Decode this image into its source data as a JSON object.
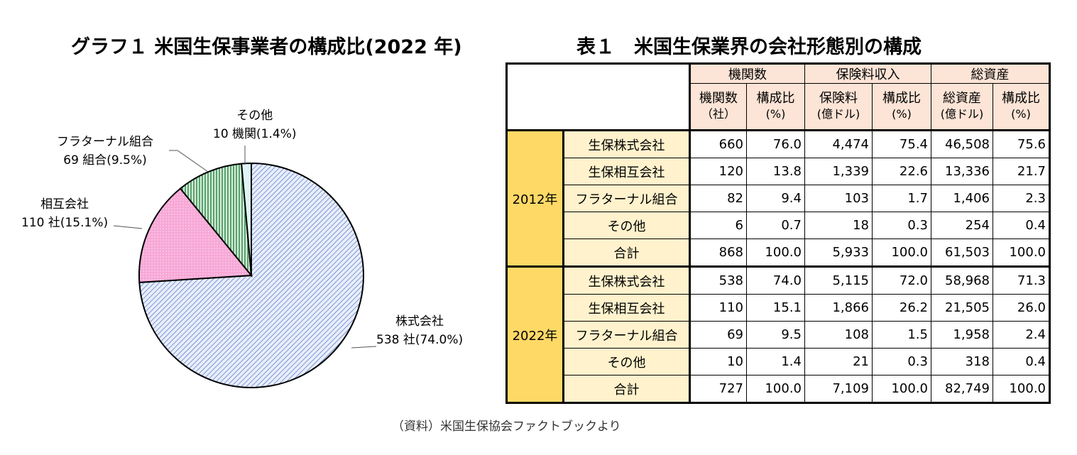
{
  "chart_title": "グラフ１ 米国生保事業者の構成比(2022 年)",
  "table_title": "表１　米国生保業界の会社形態別の構成",
  "chart_data": {
    "type": "pie",
    "title": "グラフ１ 米国生保事業者の構成比(2022 年)",
    "slices": [
      {
        "name": "株式会社",
        "count": 538,
        "unit": "社",
        "percent": 74.0,
        "label1": "株式会社",
        "label2": "538 社(74.0%)",
        "color": "#c5d3f0"
      },
      {
        "name": "相互会社",
        "count": 110,
        "unit": "社",
        "percent": 15.1,
        "label1": "相互会社",
        "label2": "110 社(15.1%)",
        "color": "#f7a8d6"
      },
      {
        "name": "フラターナル組合",
        "count": 69,
        "unit": "組合",
        "percent": 9.5,
        "label1": "フラターナル組合",
        "label2": "69 組合(9.5%)",
        "color": "#3f9d5a"
      },
      {
        "name": "その他",
        "count": 10,
        "unit": "機関",
        "percent": 1.4,
        "label1": "その他",
        "label2": "10 機関(1.4%)",
        "color": "#dff4f7"
      }
    ]
  },
  "table": {
    "groups": [
      "機関数",
      "保険料収入",
      "総資産"
    ],
    "subheaders": [
      [
        "機関数",
        "（社）"
      ],
      [
        "構成比",
        "(%)"
      ],
      [
        "保険料",
        "(億ドル)"
      ],
      [
        "構成比",
        "(%)"
      ],
      [
        "総資産",
        "(億ドル)"
      ],
      [
        "構成比",
        "(%)"
      ]
    ],
    "sections": [
      {
        "year": "2012年",
        "rows": [
          {
            "cat": "生保株式会社",
            "v": [
              "660",
              "76.0",
              "4,474",
              "75.4",
              "46,508",
              "75.6"
            ]
          },
          {
            "cat": "生保相互会社",
            "v": [
              "120",
              "13.8",
              "1,339",
              "22.6",
              "13,336",
              "21.7"
            ]
          },
          {
            "cat": "フラターナル組合",
            "v": [
              "82",
              "9.4",
              "103",
              "1.7",
              "1,406",
              "2.3"
            ]
          },
          {
            "cat": "その他",
            "v": [
              "6",
              "0.7",
              "18",
              "0.3",
              "254",
              "0.4"
            ]
          },
          {
            "cat": "合計",
            "v": [
              "868",
              "100.0",
              "5,933",
              "100.0",
              "61,503",
              "100.0"
            ]
          }
        ]
      },
      {
        "year": "2022年",
        "rows": [
          {
            "cat": "生保株式会社",
            "v": [
              "538",
              "74.0",
              "5,115",
              "72.0",
              "58,968",
              "71.3"
            ]
          },
          {
            "cat": "生保相互会社",
            "v": [
              "110",
              "15.1",
              "1,866",
              "26.2",
              "21,505",
              "26.0"
            ]
          },
          {
            "cat": "フラターナル組合",
            "v": [
              "69",
              "9.5",
              "108",
              "1.5",
              "1,958",
              "2.4"
            ]
          },
          {
            "cat": "その他",
            "v": [
              "10",
              "1.4",
              "21",
              "0.3",
              "318",
              "0.4"
            ]
          },
          {
            "cat": "合計",
            "v": [
              "727",
              "100.0",
              "7,109",
              "100.0",
              "82,749",
              "100.0"
            ]
          }
        ]
      }
    ]
  },
  "source": "（資料）米国生保協会ファクトブックより"
}
